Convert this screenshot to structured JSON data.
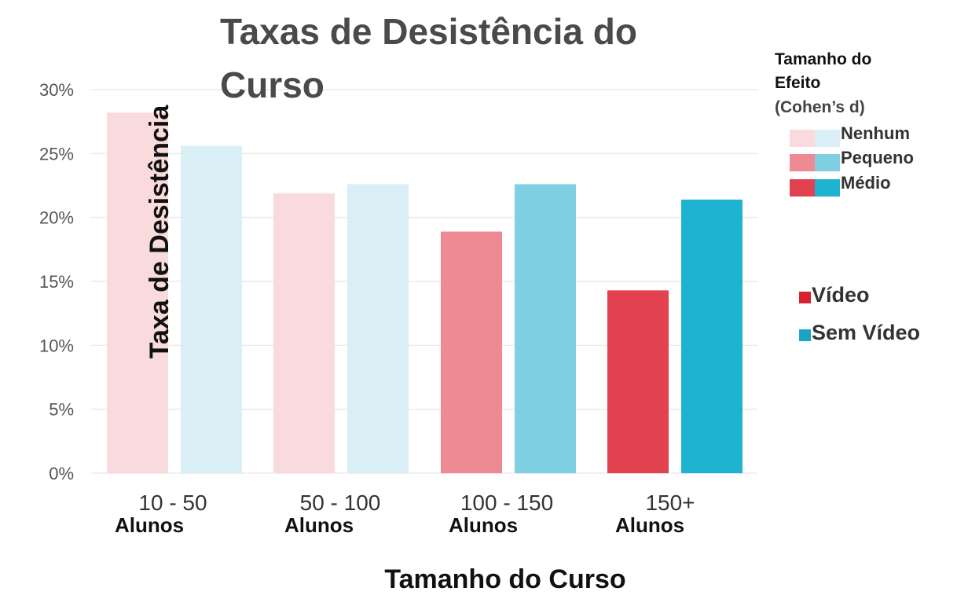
{
  "chart_data": {
    "type": "bar",
    "title_line1": "Taxas de Desistência do",
    "title_line2": "Curso",
    "xlabel": "Tamanho do Curso",
    "ylabel": "Taxa de Desistência",
    "ylim": [
      0,
      30
    ],
    "yticks": [
      "0%",
      "5%",
      "10%",
      "15%",
      "20%",
      "25%",
      "30%"
    ],
    "grid": true,
    "categories": [
      {
        "line1": "10 - 50",
        "line2": "Alunos"
      },
      {
        "line1": "50 - 100",
        "line2": "Alunos"
      },
      {
        "line1": "100 - 150",
        "line2": "Alunos"
      },
      {
        "line1": "150+",
        "line2": "Alunos"
      }
    ],
    "series": [
      {
        "name": "Vídeo",
        "values": [
          28.2,
          21.9,
          18.9,
          14.3
        ]
      },
      {
        "name": "Sem Vídeo",
        "values": [
          25.6,
          22.6,
          22.6,
          21.4
        ]
      }
    ],
    "effect_size": [
      "Nenhum",
      "Nenhum",
      "Pequeno",
      "Médio"
    ],
    "legend": {
      "effect_title_line1": "Tamanho do",
      "effect_title_line2": "Efeito",
      "effect_subtitle": "(Cohen’s d)",
      "effect_levels": [
        "Nenhum",
        "Pequeno",
        "Médio"
      ],
      "series_labels": [
        "Vídeo",
        "Sem Vídeo"
      ],
      "placement": "right"
    },
    "colors": {
      "video": {
        "Nenhum": "#fadbdd",
        "Pequeno": "#ee8a93",
        "Médio": "#e2414f",
        "base": "#d91f30"
      },
      "sem_video": {
        "Nenhum": "#d9eff5",
        "Pequeno": "#7fcfe2",
        "Médio": "#1eb3d0",
        "base": "#1aa4c6"
      }
    }
  }
}
